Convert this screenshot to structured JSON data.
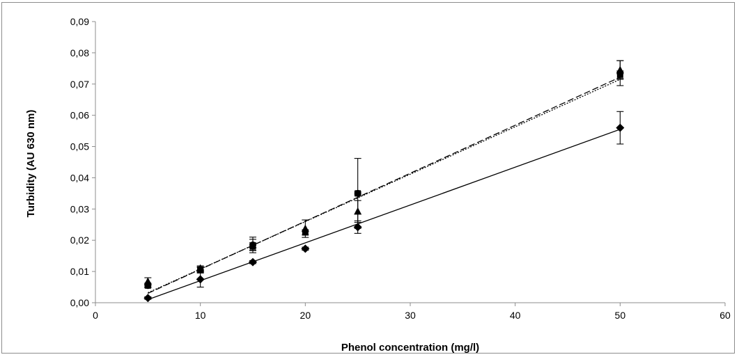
{
  "chart_data": {
    "type": "scatter",
    "title": "",
    "xlabel": "Phenol concentration (mg/l)",
    "ylabel": "Turbidity (AU  630 nm)",
    "xlim": [
      0,
      60
    ],
    "ylim": [
      0,
      0.09
    ],
    "x_ticks": [
      "0",
      "10",
      "20",
      "30",
      "40",
      "50",
      "60"
    ],
    "y_ticks": [
      "0,00",
      "0,01",
      "0,02",
      "0,03",
      "0,04",
      "0,05",
      "0,06",
      "0,07",
      "0,08",
      "0,09"
    ],
    "grid": false,
    "legend": "none",
    "series": [
      {
        "marker": "diamond",
        "trendline": "solid",
        "trendline_fit": {
          "x0": 5,
          "y0": 0.001,
          "x1": 50,
          "y1": 0.0555
        },
        "points": [
          {
            "x": 5,
            "y": 0.0015,
            "err": 0.0004
          },
          {
            "x": 10,
            "y": 0.0075,
            "err": 0.0025
          },
          {
            "x": 15,
            "y": 0.013,
            "err": 0.0005
          },
          {
            "x": 20,
            "y": 0.0173,
            "err": 0.0005
          },
          {
            "x": 25,
            "y": 0.0242,
            "err": 0.002
          },
          {
            "x": 50,
            "y": 0.056,
            "err": 0.0052
          }
        ]
      },
      {
        "marker": "square",
        "trendline": "dashed",
        "trendline_fit": {
          "x0": 5,
          "y0": 0.003,
          "x1": 50,
          "y1": 0.0722
        },
        "points": [
          {
            "x": 5,
            "y": 0.0055,
            "err": 0.0007
          },
          {
            "x": 10,
            "y": 0.0105,
            "err": 0.0008
          },
          {
            "x": 15,
            "y": 0.018,
            "err": 0.0012
          },
          {
            "x": 20,
            "y": 0.0225,
            "err": 0.0008
          },
          {
            "x": 25,
            "y": 0.035,
            "err": 0.0112
          },
          {
            "x": 50,
            "y": 0.073,
            "err": 0.0012
          }
        ]
      },
      {
        "marker": "triangle",
        "trendline": "dotted",
        "trendline_fit": {
          "x0": 5,
          "y0": 0.0032,
          "x1": 50,
          "y1": 0.0715
        },
        "points": [
          {
            "x": 5,
            "y": 0.0068,
            "err": 0.0012
          },
          {
            "x": 10,
            "y": 0.011,
            "err": 0.0008
          },
          {
            "x": 15,
            "y": 0.0185,
            "err": 0.0018
          },
          {
            "x": 20,
            "y": 0.0237,
            "err": 0.0028
          },
          {
            "x": 25,
            "y": 0.0292,
            "err": 0.0035
          },
          {
            "x": 50,
            "y": 0.0745,
            "err": 0.003
          }
        ]
      },
      {
        "marker": "circle",
        "trendline": "none",
        "points": [
          {
            "x": 5,
            "y": 0.0055,
            "err": 0.0005
          },
          {
            "x": 10,
            "y": 0.0105,
            "err": 0.001
          },
          {
            "x": 15,
            "y": 0.0185,
            "err": 0.0025
          },
          {
            "x": 25,
            "y": 0.035,
            "err": 0.0005
          },
          {
            "x": 50,
            "y": 0.0735,
            "err": 0.004
          }
        ]
      }
    ]
  }
}
